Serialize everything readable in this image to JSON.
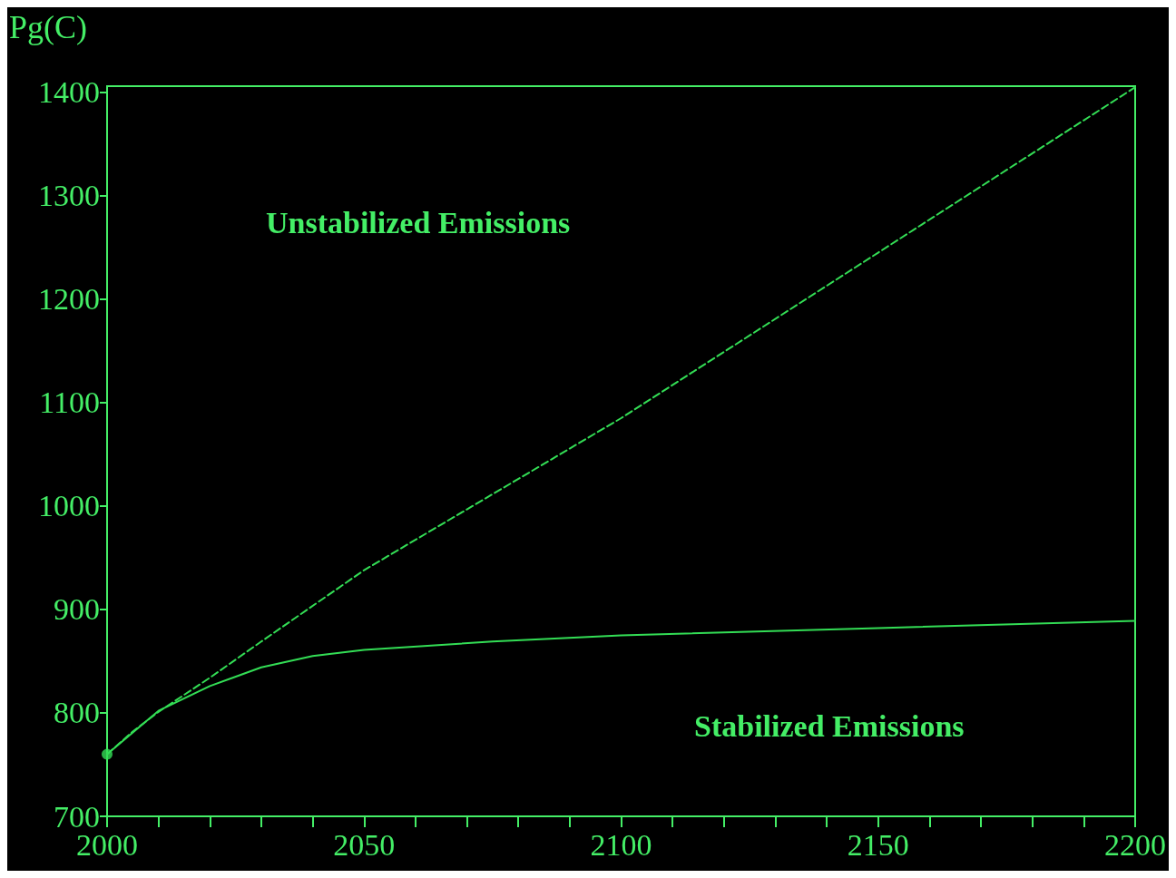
{
  "chart_data": {
    "type": "line",
    "ylabel": "Pg(C)",
    "xlim": [
      2000,
      2200
    ],
    "xticks": [
      2000,
      {
        "value": 2010,
        "label": null
      },
      {
        "value": 2020,
        "label": null
      },
      {
        "value": 2030,
        "label": null
      },
      {
        "value": 2040,
        "label": null
      },
      2050,
      {
        "value": 2060,
        "label": null
      },
      {
        "value": 2070,
        "label": null
      },
      {
        "value": 2080,
        "label": null
      },
      {
        "value": 2090,
        "label": null
      },
      2100,
      {
        "value": 2110,
        "label": null
      },
      {
        "value": 2120,
        "label": null
      },
      {
        "value": 2130,
        "label": null
      },
      {
        "value": 2140,
        "label": null
      },
      2150,
      {
        "value": 2160,
        "label": null
      },
      {
        "value": 2170,
        "label": null
      },
      {
        "value": 2180,
        "label": null
      },
      {
        "value": 2190,
        "label": null
      },
      2200
    ],
    "ylim": [
      700,
      1406
    ],
    "yticks": [
      700,
      800,
      900,
      1000,
      1100,
      1200,
      1300,
      1400
    ],
    "grid": false,
    "series": [
      {
        "line_style": "dashed",
        "marker": "none",
        "color": "#33dd55",
        "x": [
          2000,
          2005,
          2010,
          2020,
          2030,
          2050,
          2100,
          2150,
          2200
        ],
        "values": [
          760,
          782,
          801,
          834,
          869,
          938,
          1085,
          1245,
          1405
        ]
      },
      {
        "line_style": "solid",
        "marker": "none",
        "color": "#33dd55",
        "x": [
          2000,
          2010,
          2020,
          2030,
          2040,
          2050,
          2075,
          2100,
          2150,
          2200
        ],
        "values": [
          760,
          802,
          826,
          844,
          855,
          861,
          869,
          875,
          882,
          889
        ]
      },
      {
        "type": "scatter",
        "marker": "circle",
        "color": "#33dd55",
        "x": [
          2000
        ],
        "values": [
          760
        ]
      }
    ],
    "annotations": [
      "Unstabilized Emissions",
      "Stabilized Emissions"
    ]
  }
}
